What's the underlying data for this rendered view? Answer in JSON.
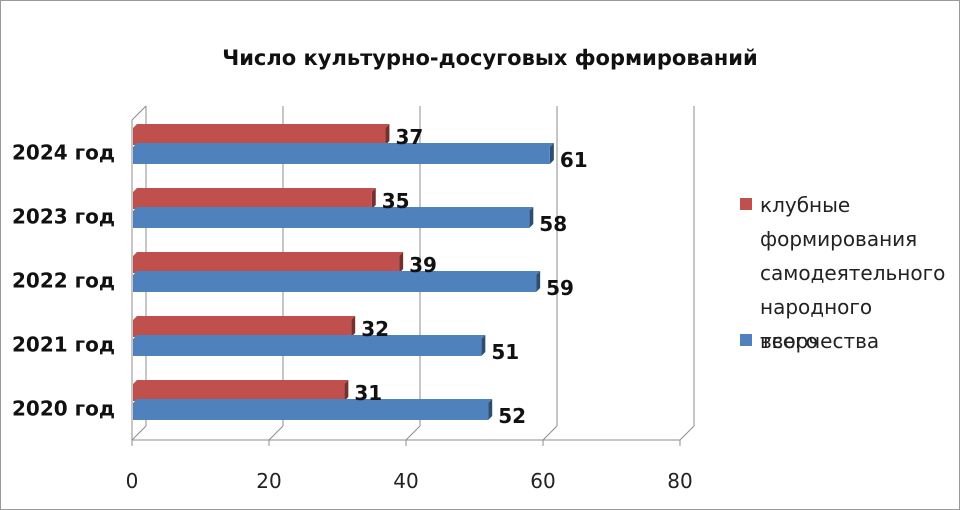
{
  "chart_data": {
    "type": "bar",
    "orientation": "horizontal",
    "title": "Число культурно-досуговых формирований",
    "categories": [
      "2020 год",
      "2021 год",
      "2022 год",
      "2023 год",
      "2024 год"
    ],
    "series": [
      {
        "name": "клубные формирования самодеятельного народного творчества",
        "values": [
          31,
          32,
          39,
          35,
          37
        ],
        "color": "#C0504D"
      },
      {
        "name": "всего",
        "values": [
          52,
          51,
          59,
          58,
          61
        ],
        "color": "#4F81BD"
      }
    ],
    "xlim": [
      0,
      80
    ],
    "xticks": [
      "0",
      "20",
      "40",
      "60",
      "80"
    ],
    "grid": true,
    "legend_position": "right"
  }
}
